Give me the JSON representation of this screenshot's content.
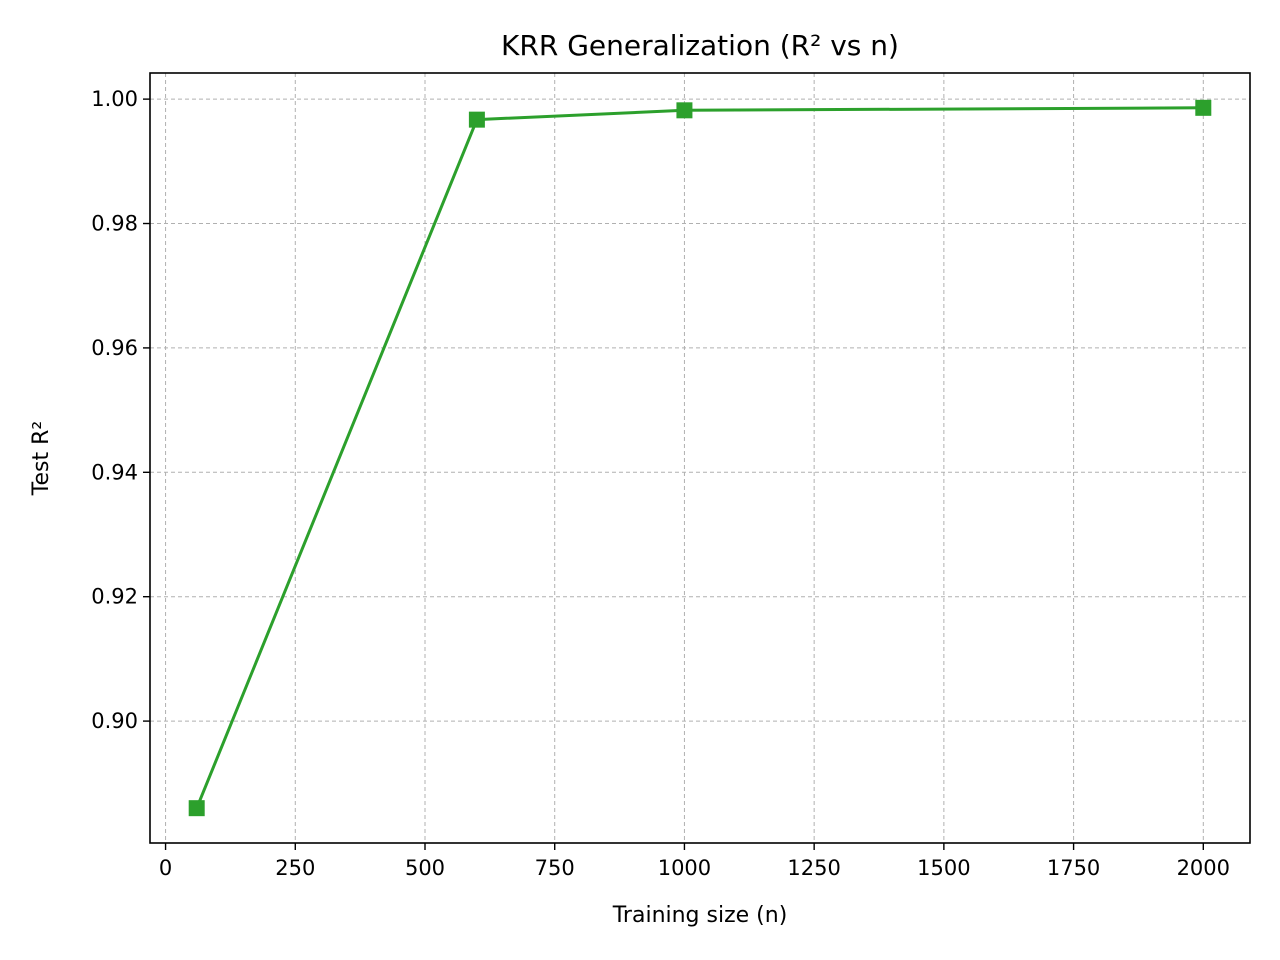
{
  "chart_data": {
    "type": "line",
    "title": "KRR Generalization (R² vs n)",
    "xlabel": "Training size (n)",
    "ylabel": "Test R²",
    "xlim": [
      -30,
      2090
    ],
    "ylim": [
      0.8804,
      1.0042
    ],
    "xticks": [
      0,
      250,
      500,
      750,
      1000,
      1250,
      1500,
      1750,
      2000
    ],
    "xtick_labels": [
      "0",
      "250",
      "500",
      "750",
      "1000",
      "1250",
      "1500",
      "1750",
      "2000"
    ],
    "yticks": [
      0.9,
      0.92,
      0.94,
      0.96,
      0.98,
      1.0
    ],
    "ytick_labels": [
      "0.90",
      "0.92",
      "0.94",
      "0.96",
      "0.98",
      "1.00"
    ],
    "grid": true,
    "series": [
      {
        "color": "#2ca02c",
        "marker": "square",
        "x": [
          60,
          600,
          1000,
          2000
        ],
        "y": [
          0.886,
          0.9967,
          0.9982,
          0.9986
        ]
      }
    ]
  }
}
